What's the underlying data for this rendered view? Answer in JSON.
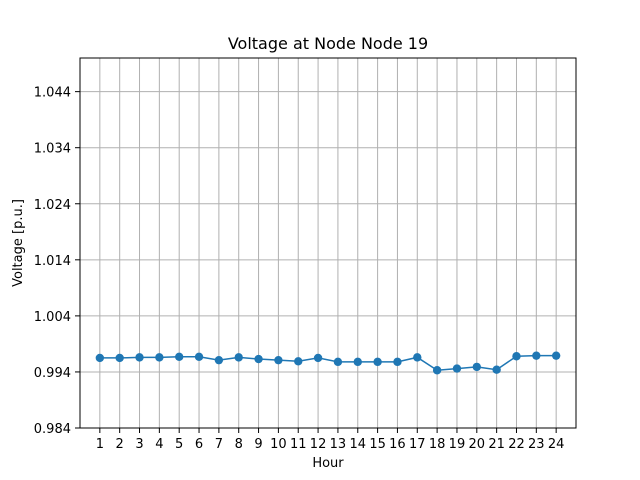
{
  "chart_data": {
    "type": "line",
    "title": "Voltage at Node Node 19",
    "xlabel": "Hour",
    "ylabel": "Voltage [p.u.]",
    "x": [
      1,
      2,
      3,
      4,
      5,
      6,
      7,
      8,
      9,
      10,
      11,
      12,
      13,
      14,
      15,
      16,
      17,
      18,
      19,
      20,
      21,
      22,
      23,
      24
    ],
    "x_tick_labels": [
      "1",
      "2",
      "3",
      "4",
      "5",
      "6",
      "7",
      "8",
      "9",
      "10",
      "11",
      "12",
      "13",
      "14",
      "15",
      "16",
      "17",
      "18",
      "19",
      "20",
      "21",
      "22",
      "23",
      "24"
    ],
    "series": [
      {
        "color": "#1f77b4",
        "values": [
          0.9965,
          0.9965,
          0.9966,
          0.9966,
          0.9967,
          0.9967,
          0.9961,
          0.9966,
          0.9963,
          0.9961,
          0.9959,
          0.9965,
          0.9958,
          0.9958,
          0.9958,
          0.9958,
          0.9966,
          0.9943,
          0.9946,
          0.9949,
          0.9944,
          0.9968,
          0.9969,
          0.9969
        ]
      }
    ],
    "y_ticks": [
      0.984,
      0.994,
      1.004,
      1.014,
      1.024,
      1.034,
      1.044
    ],
    "y_tick_labels": [
      "0.984",
      "0.994",
      "1.004",
      "1.014",
      "1.024",
      "1.034",
      "1.044"
    ],
    "xlim": [
      0,
      25
    ],
    "ylim": [
      0.984,
      1.05
    ],
    "grid": true
  }
}
